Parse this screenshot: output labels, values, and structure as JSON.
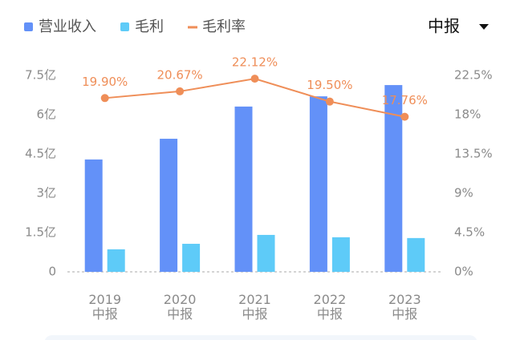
{
  "chart_data": {
    "type": "bar-line",
    "categories": [
      "2019\n中报",
      "2020\n中报",
      "2021\n中报",
      "2022\n中报",
      "2023\n中报"
    ],
    "series": [
      {
        "name": "营业收入",
        "type": "bar",
        "color": "#6391f8",
        "values": [
          4.29,
          5.08,
          6.31,
          6.7,
          7.13
        ]
      },
      {
        "name": "毛利",
        "type": "bar",
        "color": "#5ecbf8",
        "values": [
          0.86,
          1.07,
          1.41,
          1.32,
          1.29
        ]
      },
      {
        "name": "毛利率",
        "type": "line",
        "axis": "y2",
        "color": "#ef8e58",
        "values": [
          19.9,
          20.67,
          22.12,
          19.5,
          17.76
        ],
        "value_labels": [
          "19.90%",
          "20.67%",
          "22.12%",
          "19.50%",
          "17.76%"
        ]
      }
    ],
    "ylim": [
      0,
      7.5
    ],
    "yticks": [
      0,
      {
        "value": 1.5,
        "label": "1.5亿"
      },
      {
        "value": 3,
        "label": "3亿"
      },
      {
        "value": 4.5,
        "label": "4.5亿"
      },
      {
        "value": 6,
        "label": "6亿"
      },
      {
        "value": 7.5,
        "label": "7.5亿"
      }
    ],
    "y2lim": [
      0,
      22.5
    ],
    "y2ticks": [
      {
        "value": 0,
        "label": "0%"
      },
      {
        "value": 4.5,
        "label": "4.5%"
      },
      {
        "value": 9,
        "label": "9%"
      },
      {
        "value": 13.5,
        "label": "13.5%"
      },
      {
        "value": 18,
        "label": "18%"
      },
      {
        "value": 22.5,
        "label": "22.5%"
      }
    ],
    "period": "中报"
  }
}
